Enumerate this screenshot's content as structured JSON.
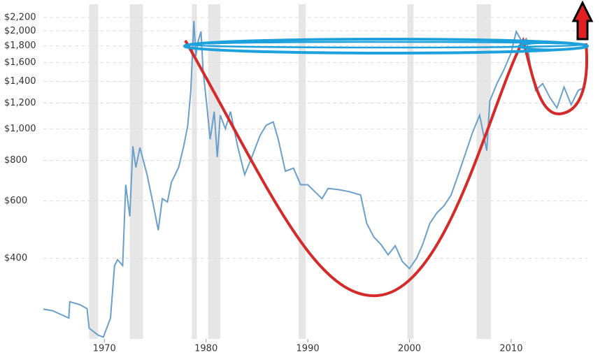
{
  "chart_data": {
    "type": "line",
    "log_y": true,
    "grid": true,
    "xlim": [
      1964,
      2017.5
    ],
    "ylim": [
      226,
      2370
    ],
    "xticks": [
      1970,
      1980,
      1990,
      2000,
      2010
    ],
    "yticks": [
      {
        "value": 400,
        "label": "$400"
      },
      {
        "value": 600,
        "label": "$600"
      },
      {
        "value": 800,
        "label": "$800"
      },
      {
        "value": 1000,
        "label": "$1,000"
      },
      {
        "value": 1200,
        "label": "$1,200"
      },
      {
        "value": 1400,
        "label": "$1,400"
      },
      {
        "value": 1600,
        "label": "$1,600"
      },
      {
        "value": 1800,
        "label": "$1,800"
      },
      {
        "value": 2000,
        "label": "$2,000"
      },
      {
        "value": 2200,
        "label": "$2,200"
      }
    ],
    "recession_color": "#e6e6e6",
    "recessions": [
      [
        1968.5,
        1969.4
      ],
      [
        1972.5,
        1973.8
      ],
      [
        1978.6,
        1979.1
      ],
      [
        1980.2,
        1981.4
      ],
      [
        1989.1,
        1989.8
      ],
      [
        1999.8,
        2000.4
      ],
      [
        2006.6,
        2008.0
      ]
    ],
    "series": [
      {
        "color": "#6a9fcb",
        "x": [
          1964.0,
          1964.9,
          1966.5,
          1966.6,
          1967.6,
          1968.3,
          1968.5,
          1969.4,
          1969.9,
          1970.6,
          1971.0,
          1971.3,
          1971.8,
          1972.1,
          1972.5,
          1972.8,
          1973.1,
          1973.5,
          1974.2,
          1974.9,
          1975.3,
          1975.7,
          1976.2,
          1976.6,
          1977.3,
          1977.8,
          1978.2,
          1978.5,
          1978.8,
          1979.0,
          1979.2,
          1979.5,
          1979.7,
          1980.1,
          1980.4,
          1980.8,
          1981.1,
          1981.4,
          1981.9,
          1982.4,
          1983.1,
          1983.8,
          1984.5,
          1985.3,
          1985.9,
          1986.6,
          1987.1,
          1987.8,
          1988.6,
          1989.3,
          1990.0,
          1990.7,
          1991.4,
          1992.0,
          1993.1,
          1994.1,
          1995.2,
          1995.8,
          1996.5,
          1997.2,
          1997.9,
          1998.6,
          1999.3,
          2000.0,
          2000.7,
          2001.3,
          2002.0,
          2002.7,
          2003.4,
          2004.1,
          2004.8,
          2005.5,
          2006.2,
          2006.9,
          2007.6,
          2007.9,
          2008.6,
          2009.3,
          2010.0,
          2010.5,
          2011.1,
          2011.5,
          2011.9,
          2012.4,
          2013.1,
          2013.8,
          2014.5,
          2015.2,
          2015.9,
          2016.6,
          2017.3
        ],
        "values": [
          279,
          276,
          262,
          294,
          288,
          280,
          244,
          232,
          229,
          262,
          380,
          396,
          380,
          673,
          538,
          884,
          761,
          876,
          723,
          566,
          488,
          610,
          596,
          686,
          761,
          884,
          1025,
          1313,
          2147,
          1674,
          1846,
          1992,
          1522,
          1160,
          929,
          1130,
          819,
          1102,
          1000,
          1130,
          884,
          723,
          819,
          952,
          1025,
          1051,
          929,
          741,
          757,
          673,
          673,
          641,
          610,
          656,
          650,
          641,
          626,
          512,
          465,
          441,
          410,
          437,
          391,
          372,
          400,
          441,
          512,
          552,
          580,
          626,
          723,
          839,
          974,
          1102,
          857,
          1218,
          1378,
          1522,
          1713,
          1992,
          1846,
          1893,
          1559,
          1313,
          1378,
          1250,
          1160,
          1344,
          1186,
          1313,
          1344
        ]
      }
    ]
  }
}
